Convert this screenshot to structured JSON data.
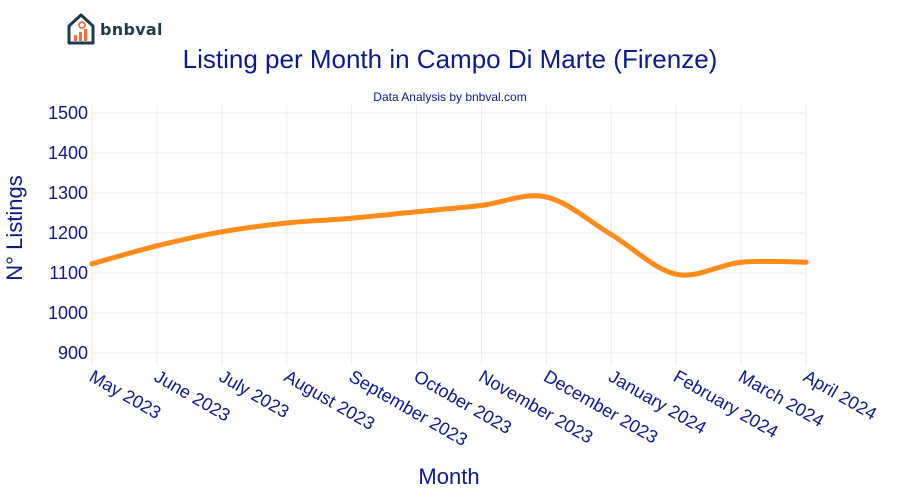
{
  "brand": {
    "name": "bnbval",
    "logo_icon": "house-chart-icon"
  },
  "colors": {
    "title": "#0d1a8a",
    "line": "#ff8c1a",
    "grid": "#ebebeb"
  },
  "chart_data": {
    "type": "line",
    "title": "Listing per Month in Campo Di Marte (Firenze)",
    "subtitle": "Data Analysis by bnbval.com",
    "xlabel": "Month",
    "ylabel": "N° Listings",
    "categories": [
      "May 2023",
      "June 2023",
      "July 2023",
      "August 2023",
      "September 2023",
      "October 2023",
      "November 2023",
      "December 2023",
      "January 2024",
      "February 2024",
      "March 2024",
      "April 2024"
    ],
    "series": [
      {
        "values": [
          1123,
          1168,
          1203,
          1225,
          1237,
          1253,
          1269,
          1290,
          1196,
          1097,
          1127,
          1127
        ]
      }
    ],
    "y_ticks": [
      900,
      1000,
      1100,
      1200,
      1300,
      1400,
      1500
    ],
    "ylim": [
      870,
      1520
    ],
    "grid": true,
    "legend": "none"
  }
}
